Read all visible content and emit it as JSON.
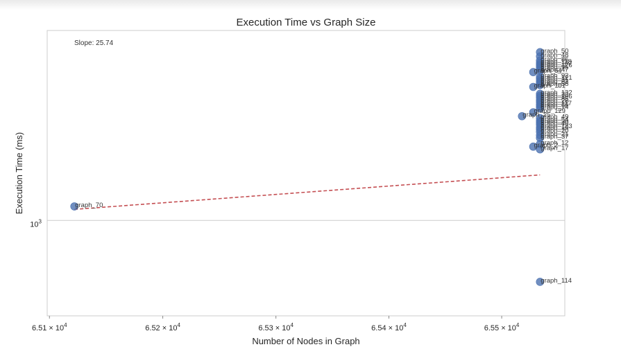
{
  "chart_data": {
    "type": "scatter",
    "title": "Execution Time vs Graph Size",
    "xlabel": "Number of Nodes in Graph",
    "ylabel": "Execution Time (ms)",
    "x_scale": "log",
    "y_scale": "log",
    "xlim": [
      65098,
      65556
    ],
    "ylim": [
      880,
      1290
    ],
    "x_ticks": [
      {
        "value": 65100,
        "mantissa": "6.51",
        "exponent": "4"
      },
      {
        "value": 65200,
        "mantissa": "6.52",
        "exponent": "4"
      },
      {
        "value": 65300,
        "mantissa": "6.53",
        "exponent": "4"
      },
      {
        "value": 65400,
        "mantissa": "6.54",
        "exponent": "4"
      },
      {
        "value": 65500,
        "mantissa": "6.55",
        "exponent": "4"
      }
    ],
    "y_ticks": [
      {
        "value": 1000,
        "base": "10",
        "exponent": "3"
      }
    ],
    "grid": true,
    "annotation": "Slope: 25.74",
    "trendline": {
      "style": "dashed",
      "color": "#c44e52",
      "x": [
        65122,
        65534
      ],
      "y": [
        1015,
        1063
      ]
    },
    "point_color": "#4c72b0",
    "series": [
      {
        "points": [
          {
            "x": 65122,
            "y": 1019,
            "label": "graph_70"
          },
          {
            "x": 65534,
            "y": 1253,
            "label": "graph_50"
          },
          {
            "x": 65534,
            "y": 1246,
            "label": "graph_48"
          },
          {
            "x": 65534,
            "y": 1239,
            "label": "graph_86"
          },
          {
            "x": 65534,
            "y": 1235,
            "label": "graph_118"
          },
          {
            "x": 65534,
            "y": 1232,
            "label": "graph_107"
          },
          {
            "x": 65534,
            "y": 1229,
            "label": "graph_126"
          },
          {
            "x": 65534,
            "y": 1226,
            "label": "graph_95"
          },
          {
            "x": 65534,
            "y": 1222,
            "label": "graph_47"
          },
          {
            "x": 65528,
            "y": 1220,
            "label": "graph_64"
          },
          {
            "x": 65534,
            "y": 1212,
            "label": "graph_92"
          },
          {
            "x": 65534,
            "y": 1209,
            "label": "graph_121"
          },
          {
            "x": 65534,
            "y": 1205,
            "label": "graph_31"
          },
          {
            "x": 65534,
            "y": 1202,
            "label": "graph_82"
          },
          {
            "x": 65534,
            "y": 1199,
            "label": "graph_58"
          },
          {
            "x": 65528,
            "y": 1196,
            "label": "graph_101"
          },
          {
            "x": 65534,
            "y": 1185,
            "label": "graph_132"
          },
          {
            "x": 65534,
            "y": 1182,
            "label": "graph_33"
          },
          {
            "x": 65534,
            "y": 1179,
            "label": "graph_106"
          },
          {
            "x": 65534,
            "y": 1175,
            "label": "graph_85"
          },
          {
            "x": 65534,
            "y": 1172,
            "label": "graph_28"
          },
          {
            "x": 65534,
            "y": 1168,
            "label": "graph_117"
          },
          {
            "x": 65534,
            "y": 1165,
            "label": "graph_60"
          },
          {
            "x": 65534,
            "y": 1162,
            "label": "graph_14"
          },
          {
            "x": 65528,
            "y": 1156,
            "label": "graph_129"
          },
          {
            "x": 65518,
            "y": 1150,
            "label": "graph_25"
          },
          {
            "x": 65534,
            "y": 1147,
            "label": "graph_49"
          },
          {
            "x": 65534,
            "y": 1143,
            "label": "graph_54"
          },
          {
            "x": 65534,
            "y": 1140,
            "label": "graph_30"
          },
          {
            "x": 65534,
            "y": 1137,
            "label": "graph_40"
          },
          {
            "x": 65534,
            "y": 1133,
            "label": "graph_123"
          },
          {
            "x": 65534,
            "y": 1130,
            "label": "graph_19"
          },
          {
            "x": 65534,
            "y": 1126,
            "label": "graph_20"
          },
          {
            "x": 65534,
            "y": 1121,
            "label": "graph_21"
          },
          {
            "x": 65534,
            "y": 1117,
            "label": "graph_37"
          },
          {
            "x": 65534,
            "y": 1108,
            "label": "graph_12"
          },
          {
            "x": 65528,
            "y": 1104,
            "label": "graph_2"
          },
          {
            "x": 65534,
            "y": 1100,
            "label": "graph_17"
          },
          {
            "x": 65534,
            "y": 921,
            "label": "graph_114"
          }
        ]
      }
    ]
  }
}
